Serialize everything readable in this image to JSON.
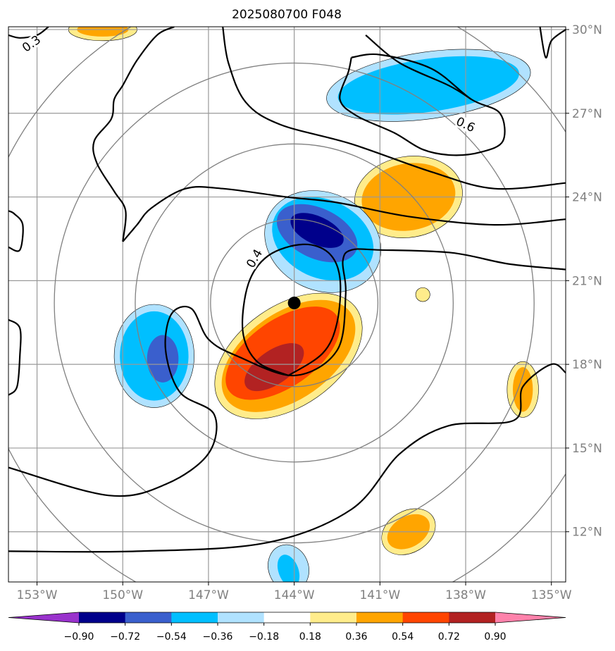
{
  "chart_data": {
    "type": "heatmap",
    "title": "2025080700 F048",
    "xlabel": "",
    "ylabel": "",
    "xlim": [
      -154,
      -134.5
    ],
    "ylim": [
      10.2,
      30.1
    ],
    "grid": true,
    "x_ticks": [
      -153,
      -150,
      -147,
      -144,
      -141,
      -138,
      -135
    ],
    "x_tick_labels": [
      "153°W",
      "150°W",
      "147°W",
      "144°W",
      "141°W",
      "138°W",
      "135°W"
    ],
    "y_ticks": [
      12,
      15,
      18,
      21,
      24,
      27,
      30
    ],
    "y_tick_labels": [
      "12°N",
      "15°N",
      "18°N",
      "21°N",
      "24°N",
      "27°N",
      "30°N"
    ],
    "center": {
      "lon": -144.0,
      "lat": 20.2
    },
    "range_rings_deg": [
      3,
      5.7,
      8.6,
      11.5
    ],
    "colorbar": {
      "levels": [
        -0.9,
        -0.72,
        -0.54,
        -0.36,
        -0.18,
        0.18,
        0.36,
        0.54,
        0.72,
        0.9
      ],
      "labels": [
        "−0.90",
        "−0.72",
        "−0.54",
        "−0.36",
        "−0.18",
        "0.18",
        "0.36",
        "0.54",
        "0.72",
        "0.90"
      ],
      "colors": [
        "#9932CC",
        "#00008B",
        "#3A5FCD",
        "#00BFFF",
        "#B0E2FF",
        "#FFFFFF",
        "#FFEC8B",
        "#FFA500",
        "#FF4500",
        "#B22222",
        "#FF82AB"
      ]
    },
    "contour_labels": [
      {
        "text": "0.3",
        "lon": -153.2,
        "lat": 29.5,
        "angle": -35
      },
      {
        "text": "0.6",
        "lon": -138.0,
        "lat": 26.6,
        "angle": 25
      },
      {
        "text": "0.4",
        "lon": -145.4,
        "lat": 21.8,
        "angle": -60
      }
    ],
    "shaded_blobs": [
      {
        "level": 0.18,
        "lon": -150.7,
        "lat": 30.0,
        "rx": 1.2,
        "ry": 0.4,
        "rot": 0
      },
      {
        "level": 0.36,
        "lon": -150.7,
        "lat": 30.0,
        "rx": 0.9,
        "ry": 0.25,
        "rot": 0
      },
      {
        "level": -0.18,
        "lon": -139.3,
        "lat": 28.0,
        "rx": 3.6,
        "ry": 1.2,
        "rot": -8
      },
      {
        "level": -0.36,
        "lon": -139.3,
        "lat": 28.0,
        "rx": 3.2,
        "ry": 0.95,
        "rot": -8
      },
      {
        "level": 0.18,
        "lon": -140.0,
        "lat": 24.0,
        "rx": 1.9,
        "ry": 1.45,
        "rot": -10
      },
      {
        "level": 0.36,
        "lon": -140.0,
        "lat": 24.0,
        "rx": 1.65,
        "ry": 1.2,
        "rot": -10
      },
      {
        "level": -0.18,
        "lon": -143.0,
        "lat": 22.4,
        "rx": 2.1,
        "ry": 1.75,
        "rot": 25
      },
      {
        "level": -0.36,
        "lon": -143.0,
        "lat": 22.5,
        "rx": 1.85,
        "ry": 1.4,
        "rot": 25
      },
      {
        "level": -0.54,
        "lon": -143.2,
        "lat": 22.7,
        "rx": 1.5,
        "ry": 0.9,
        "rot": 25
      },
      {
        "level": -0.72,
        "lon": -143.2,
        "lat": 22.8,
        "rx": 1.0,
        "ry": 0.5,
        "rot": 25
      },
      {
        "level": 0.18,
        "lon": -144.2,
        "lat": 18.3,
        "rx": 2.9,
        "ry": 1.8,
        "rot": -35
      },
      {
        "level": 0.36,
        "lon": -144.2,
        "lat": 18.3,
        "rx": 2.65,
        "ry": 1.55,
        "rot": -35
      },
      {
        "level": 0.54,
        "lon": -144.4,
        "lat": 18.4,
        "rx": 2.3,
        "ry": 1.2,
        "rot": -35
      },
      {
        "level": 0.72,
        "lon": -144.7,
        "lat": 17.9,
        "rx": 1.2,
        "ry": 0.6,
        "rot": -35
      },
      {
        "level": -0.18,
        "lon": -148.9,
        "lat": 18.3,
        "rx": 1.4,
        "ry": 1.85,
        "rot": 0
      },
      {
        "level": -0.36,
        "lon": -148.9,
        "lat": 18.3,
        "rx": 1.2,
        "ry": 1.6,
        "rot": 0
      },
      {
        "level": -0.54,
        "lon": -148.6,
        "lat": 18.2,
        "rx": 0.55,
        "ry": 0.85,
        "rot": 0
      },
      {
        "level": 0.18,
        "lon": -139.5,
        "lat": 20.5,
        "rx": 0.25,
        "ry": 0.25,
        "rot": 0
      },
      {
        "level": 0.18,
        "lon": -136.0,
        "lat": 17.1,
        "rx": 0.55,
        "ry": 1.0,
        "rot": 0
      },
      {
        "level": 0.36,
        "lon": -136.0,
        "lat": 17.1,
        "rx": 0.35,
        "ry": 0.8,
        "rot": 0
      },
      {
        "level": 0.18,
        "lon": -140.0,
        "lat": 12.0,
        "rx": 1.0,
        "ry": 0.75,
        "rot": -30
      },
      {
        "level": 0.36,
        "lon": -140.0,
        "lat": 12.0,
        "rx": 0.8,
        "ry": 0.55,
        "rot": -30
      },
      {
        "level": -0.18,
        "lon": -144.2,
        "lat": 10.7,
        "rx": 0.7,
        "ry": 0.85,
        "rot": -20
      },
      {
        "level": -0.36,
        "lon": -144.2,
        "lat": 10.6,
        "rx": 0.35,
        "ry": 0.6,
        "rot": -20
      }
    ],
    "contour_lines": [
      [
        [
          -154,
          29.8
        ],
        [
          -153.6,
          29.7
        ],
        [
          -153.0,
          29.8
        ],
        [
          -152.6,
          30.1
        ]
      ],
      [
        [
          -154,
          11.3
        ],
        [
          -149.5,
          11.3
        ],
        [
          -145.0,
          11.6
        ],
        [
          -142.0,
          12.8
        ],
        [
          -140.3,
          14.8
        ],
        [
          -138.6,
          15.8
        ],
        [
          -136.3,
          16.0
        ],
        [
          -136.0,
          17.2
        ],
        [
          -135.0,
          18.0
        ],
        [
          -134.5,
          17.7
        ]
      ],
      [
        [
          -154,
          14.3
        ],
        [
          -150.5,
          13.3
        ],
        [
          -148.5,
          13.7
        ],
        [
          -147.0,
          14.8
        ],
        [
          -146.8,
          16.2
        ],
        [
          -148.0,
          17.0
        ],
        [
          -148.5,
          18.5
        ],
        [
          -148.3,
          19.8
        ],
        [
          -147.6,
          20.0
        ],
        [
          -147.0,
          18.9
        ],
        [
          -146.0,
          18.3
        ],
        [
          -144.0,
          17.6
        ],
        [
          -142.5,
          18.5
        ],
        [
          -142.2,
          20.5
        ],
        [
          -142.3,
          21.7
        ],
        [
          -142.0,
          22.1
        ],
        [
          -141.0,
          22.1
        ],
        [
          -138.5,
          22.0
        ],
        [
          -136.5,
          21.6
        ],
        [
          -134.5,
          21.4
        ]
      ],
      [
        [
          -154,
          22.2
        ],
        [
          -153.6,
          22.1
        ],
        [
          -153.5,
          23.0
        ],
        [
          -153.8,
          23.4
        ],
        [
          -154,
          23.5
        ]
      ],
      [
        [
          -154,
          19.6
        ],
        [
          -153.6,
          19.3
        ],
        [
          -153.6,
          18.3
        ],
        [
          -153.7,
          17.2
        ],
        [
          -154,
          16.9
        ]
      ],
      [
        [
          -150.0,
          22.4
        ],
        [
          -149.9,
          23.5
        ],
        [
          -150.3,
          24.2
        ],
        [
          -150.9,
          25.2
        ],
        [
          -151.0,
          26.0
        ],
        [
          -150.4,
          26.8
        ],
        [
          -150.3,
          27.5
        ],
        [
          -150.0,
          28.0
        ],
        [
          -149.5,
          28.9
        ],
        [
          -148.8,
          29.8
        ],
        [
          -148.2,
          30.1
        ]
      ],
      [
        [
          -150.0,
          22.4
        ],
        [
          -149.5,
          23.0
        ],
        [
          -149.0,
          23.6
        ],
        [
          -147.8,
          24.3
        ],
        [
          -146.5,
          24.3
        ],
        [
          -144.3,
          24.0
        ],
        [
          -142.5,
          23.8
        ],
        [
          -140.0,
          23.3
        ],
        [
          -137.0,
          23.0
        ],
        [
          -134.5,
          23.2
        ]
      ],
      [
        [
          -146.5,
          30.1
        ],
        [
          -146.3,
          28.8
        ],
        [
          -145.7,
          27.4
        ],
        [
          -144.5,
          26.6
        ],
        [
          -142.0,
          25.9
        ],
        [
          -139.2,
          24.9
        ],
        [
          -137.0,
          24.3
        ],
        [
          -134.5,
          24.5
        ]
      ],
      [
        [
          -134.5,
          30.0
        ],
        [
          -135.0,
          29.6
        ],
        [
          -135.2,
          29.0
        ],
        [
          -135.4,
          30.1
        ]
      ],
      [
        [
          -142.0,
          29.0
        ],
        [
          -141.0,
          29.1
        ],
        [
          -139.2,
          28.6
        ],
        [
          -137.8,
          27.5
        ],
        [
          -136.8,
          27.0
        ],
        [
          -136.7,
          26.0
        ],
        [
          -137.5,
          25.6
        ],
        [
          -138.5,
          25.5
        ],
        [
          -139.5,
          25.7
        ],
        [
          -140.5,
          26.3
        ],
        [
          -141.8,
          26.9
        ],
        [
          -142.4,
          27.5
        ],
        [
          -142.1,
          28.5
        ],
        [
          -142.0,
          29.0
        ]
      ],
      [
        [
          -141.5,
          29.8
        ],
        [
          -140.3,
          28.8
        ],
        [
          -138.6,
          28.0
        ],
        [
          -137.8,
          27.5
        ]
      ],
      [
        [
          -144.2,
          17.6
        ],
        [
          -145.3,
          18.1
        ],
        [
          -145.8,
          19.2
        ],
        [
          -145.6,
          20.9
        ],
        [
          -144.9,
          21.9
        ],
        [
          -143.7,
          22.3
        ],
        [
          -142.8,
          22.0
        ],
        [
          -142.4,
          21.1
        ],
        [
          -142.5,
          19.5
        ],
        [
          -143.0,
          18.4
        ],
        [
          -144.2,
          17.6
        ]
      ]
    ]
  }
}
